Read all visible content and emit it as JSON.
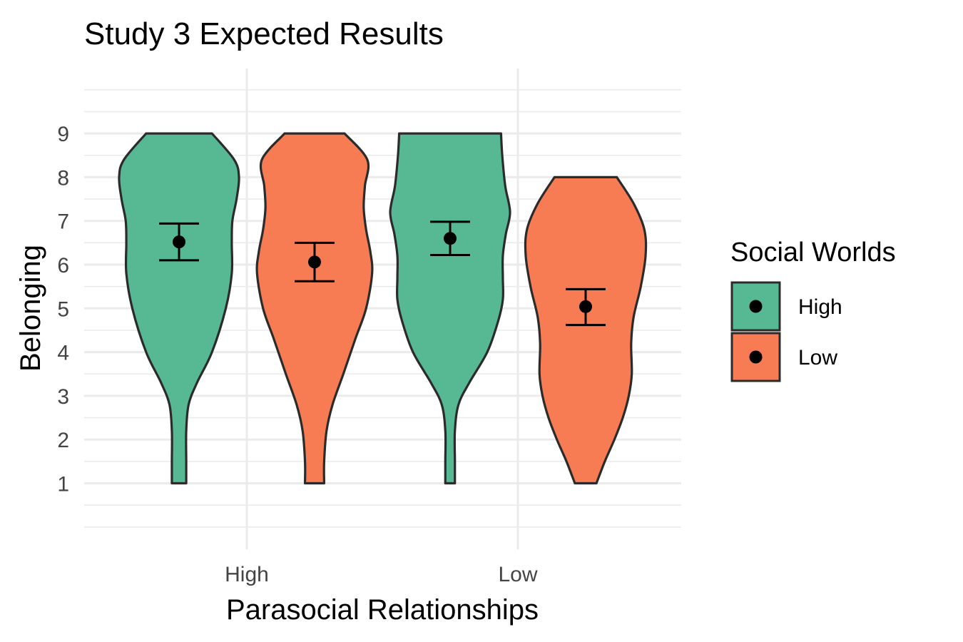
{
  "chart_data": {
    "type": "violin",
    "title": "Study 3 Expected Results",
    "xlabel": "Parasocial Relationships",
    "ylabel": "Belonging",
    "categories": [
      "High",
      "Low"
    ],
    "ylim": [
      0,
      10
    ],
    "yticks": [
      1,
      2,
      3,
      4,
      5,
      6,
      7,
      8,
      9
    ],
    "grid": true,
    "legend": {
      "title": "Social Worlds",
      "position": "right",
      "entries": [
        "High",
        "Low"
      ]
    },
    "series": [
      {
        "name": "High",
        "color": "#57b894",
        "points": [
          {
            "category": "High",
            "mean": 6.52,
            "ci_low": 6.1,
            "ci_high": 6.94,
            "min": 1,
            "max": 9
          },
          {
            "category": "Low",
            "mean": 6.6,
            "ci_low": 6.22,
            "ci_high": 6.98,
            "min": 1,
            "max": 9
          }
        ]
      },
      {
        "name": "Low",
        "color": "#f77b53",
        "points": [
          {
            "category": "High",
            "mean": 6.06,
            "ci_low": 5.62,
            "ci_high": 6.5,
            "min": 1,
            "max": 9
          },
          {
            "category": "Low",
            "mean": 5.04,
            "ci_low": 4.62,
            "ci_high": 5.44,
            "min": 1,
            "max": 8
          }
        ]
      }
    ]
  }
}
